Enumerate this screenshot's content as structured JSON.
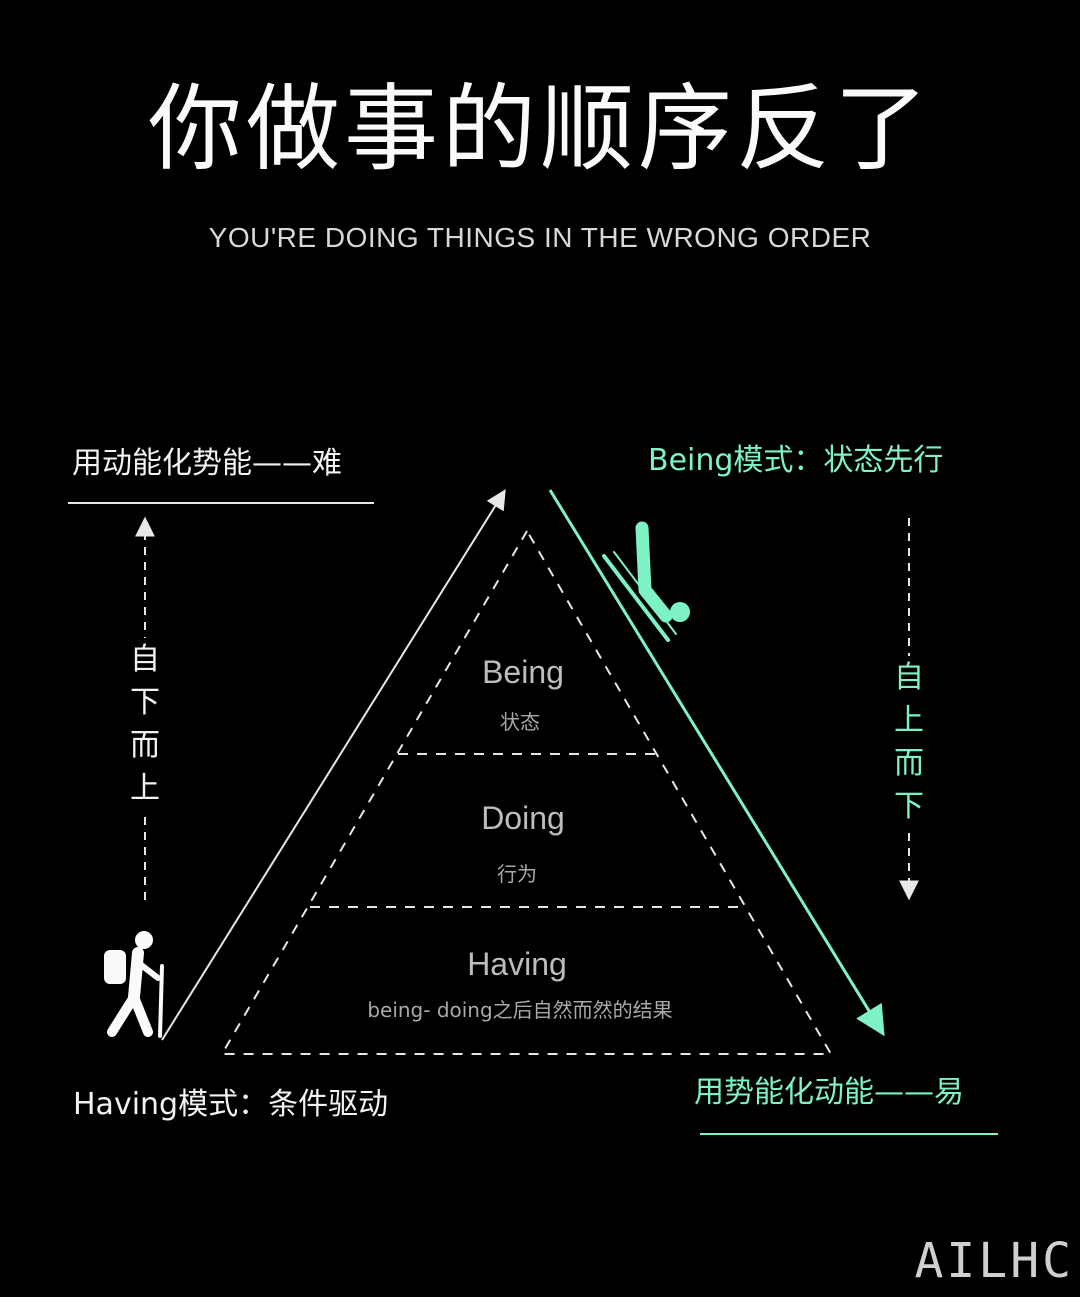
{
  "title": {
    "chinese": "你做事的顺序反了",
    "english": "YOU'RE DOING THINGS IN THE WRONG ORDER"
  },
  "left_side": {
    "top_label": "用动能化势能——难",
    "vertical_text": "自\n下\n而\n上",
    "bottom_label": "Having模式：条件驱动",
    "icon": "hiker-icon"
  },
  "right_side": {
    "top_label": "Being模式：状态先行",
    "vertical_text": "自\n上\n而\n下",
    "bottom_label": "用势能化动能——易",
    "icon": "sledder-icon"
  },
  "pyramid": {
    "tiers": [
      {
        "title": "Being",
        "subtitle": "状态"
      },
      {
        "title": "Doing",
        "subtitle": "行为"
      },
      {
        "title": "Having",
        "subtitle": "being- doing之后自然而然的结果"
      }
    ]
  },
  "colors": {
    "background": "#000000",
    "accent": "#7df2c4",
    "text": "#f2f2f2"
  },
  "watermark": "AILHC"
}
